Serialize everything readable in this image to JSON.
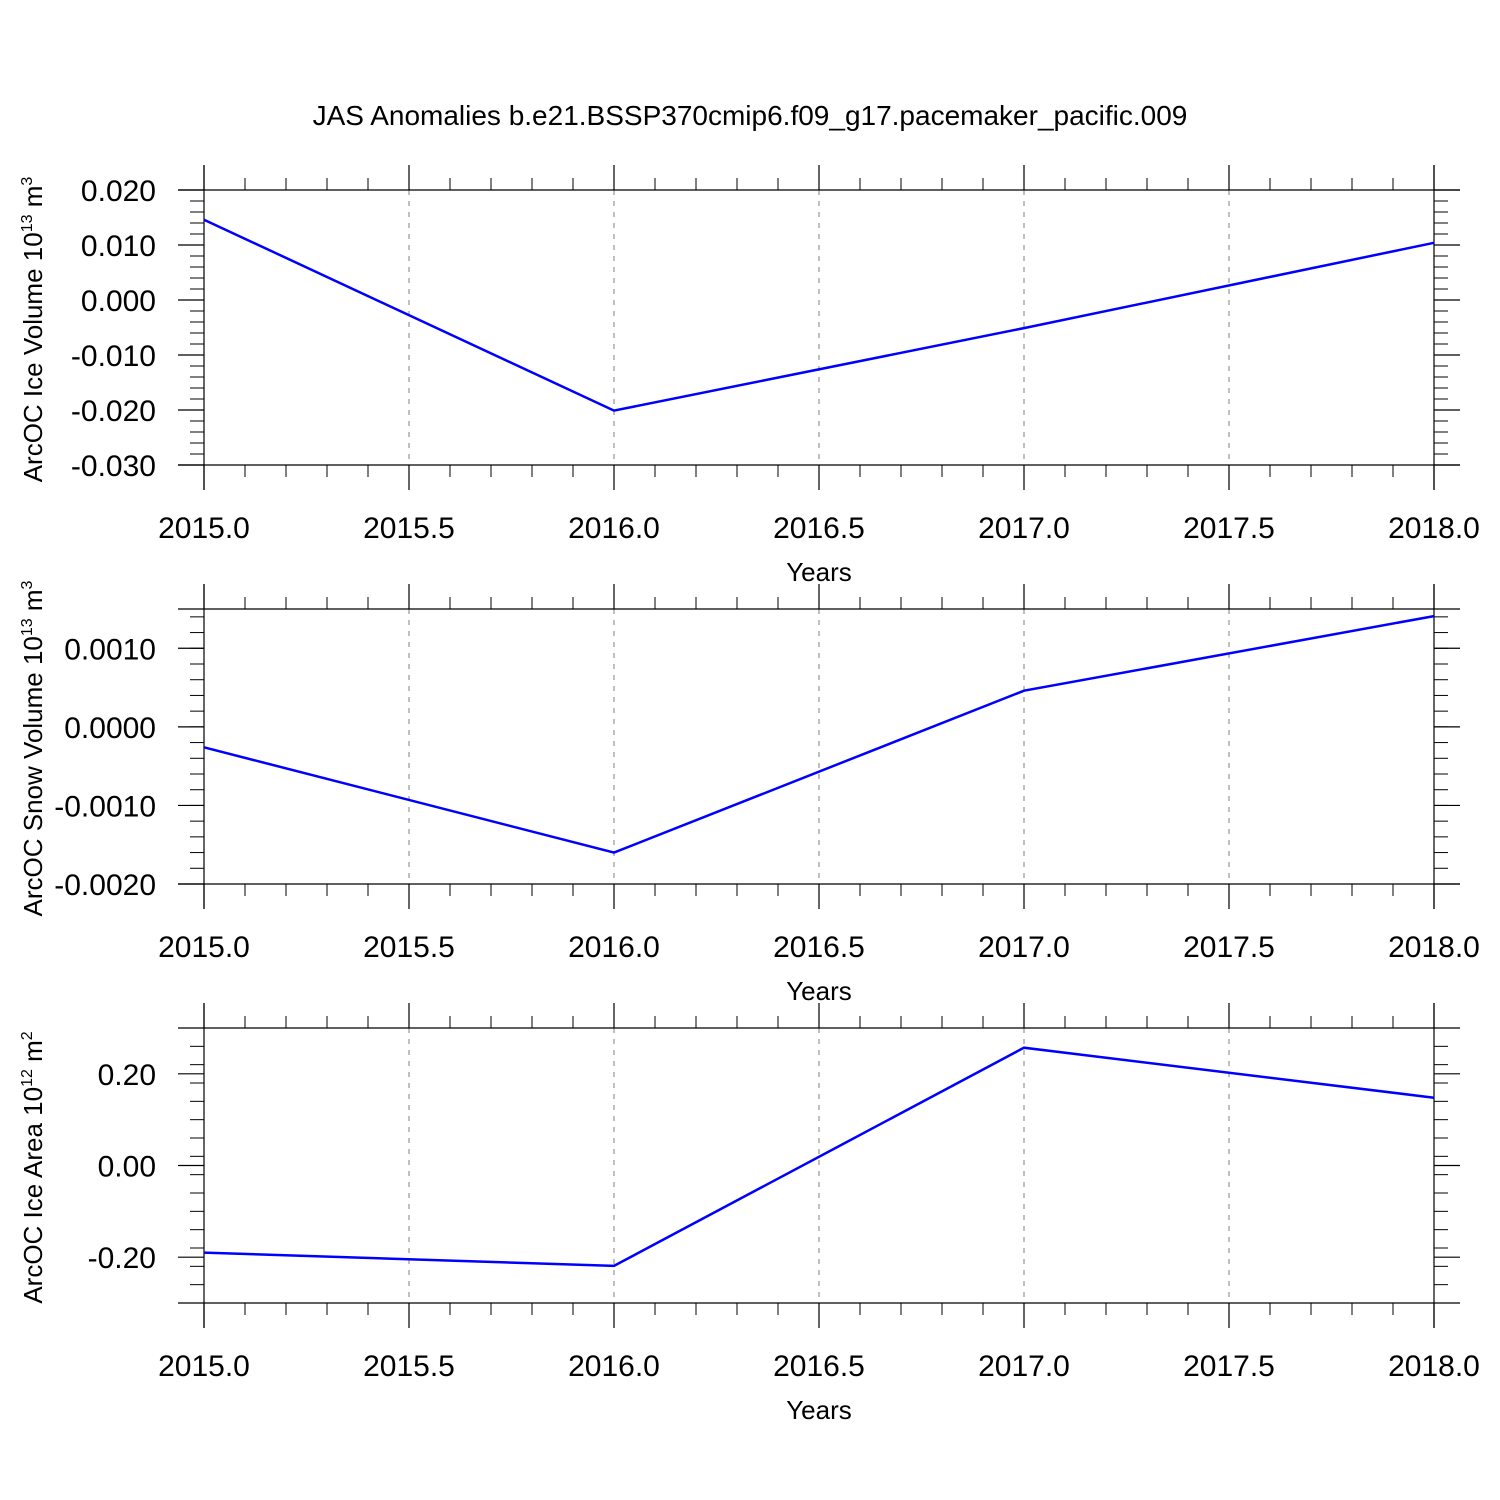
{
  "title": "JAS Anomalies b.e21.BSSP370cmip6.f09_g17.pacemaker_pacific.009",
  "colors": {
    "line": "#0000ff",
    "axis": "#000000",
    "grid": "#808080"
  },
  "chart_data": [
    {
      "type": "line",
      "xlabel": "Years",
      "ylabel": "ArcOC Ice Volume 10",
      "ylabel_exp": "13",
      "ylabel_unit": " m",
      "ylabel_unit_exp": "3",
      "xlim": [
        2015.0,
        2018.0
      ],
      "ylim": [
        -0.03,
        0.02
      ],
      "x_ticks": [
        "2015.0",
        "2015.5",
        "2016.0",
        "2016.5",
        "2017.0",
        "2017.5",
        "2018.0"
      ],
      "y_ticks": [
        "0.020",
        "0.010",
        "0.000",
        "-0.010",
        "-0.020",
        "-0.030"
      ],
      "grid": "vertical dashed",
      "series": [
        {
          "x": [
            2015,
            2016,
            2017,
            2018
          ],
          "values": [
            0.0146,
            -0.0201,
            -0.0051,
            0.0104
          ]
        }
      ]
    },
    {
      "type": "line",
      "xlabel": "Years",
      "ylabel": "ArcOC Snow Volume 10",
      "ylabel_exp": "13",
      "ylabel_unit": " m",
      "ylabel_unit_exp": "3",
      "xlim": [
        2015.0,
        2018.0
      ],
      "ylim": [
        -0.002,
        0.0015
      ],
      "x_ticks": [
        "2015.0",
        "2015.5",
        "2016.0",
        "2016.5",
        "2017.0",
        "2017.5",
        "2018.0"
      ],
      "y_ticks": [
        "0.0010",
        "0.0000",
        "-0.0010",
        "-0.0020"
      ],
      "grid": "vertical dashed",
      "series": [
        {
          "x": [
            2015,
            2016,
            2017,
            2018
          ],
          "values": [
            -0.00026,
            -0.0016,
            0.00046,
            0.00141
          ]
        }
      ]
    },
    {
      "type": "line",
      "xlabel": "Years",
      "ylabel": "ArcOC Ice Area 10",
      "ylabel_exp": "12",
      "ylabel_unit": " m",
      "ylabel_unit_exp": "2",
      "xlim": [
        2015.0,
        2018.0
      ],
      "ylim": [
        -0.3,
        0.3
      ],
      "x_ticks": [
        "2015.0",
        "2015.5",
        "2016.0",
        "2016.5",
        "2017.0",
        "2017.5",
        "2018.0"
      ],
      "y_ticks": [
        "0.20",
        "0.00",
        "-0.20"
      ],
      "grid": "vertical dashed",
      "series": [
        {
          "x": [
            2015,
            2016,
            2017,
            2018
          ],
          "values": [
            -0.19,
            -0.219,
            0.257,
            0.148
          ]
        }
      ]
    }
  ]
}
